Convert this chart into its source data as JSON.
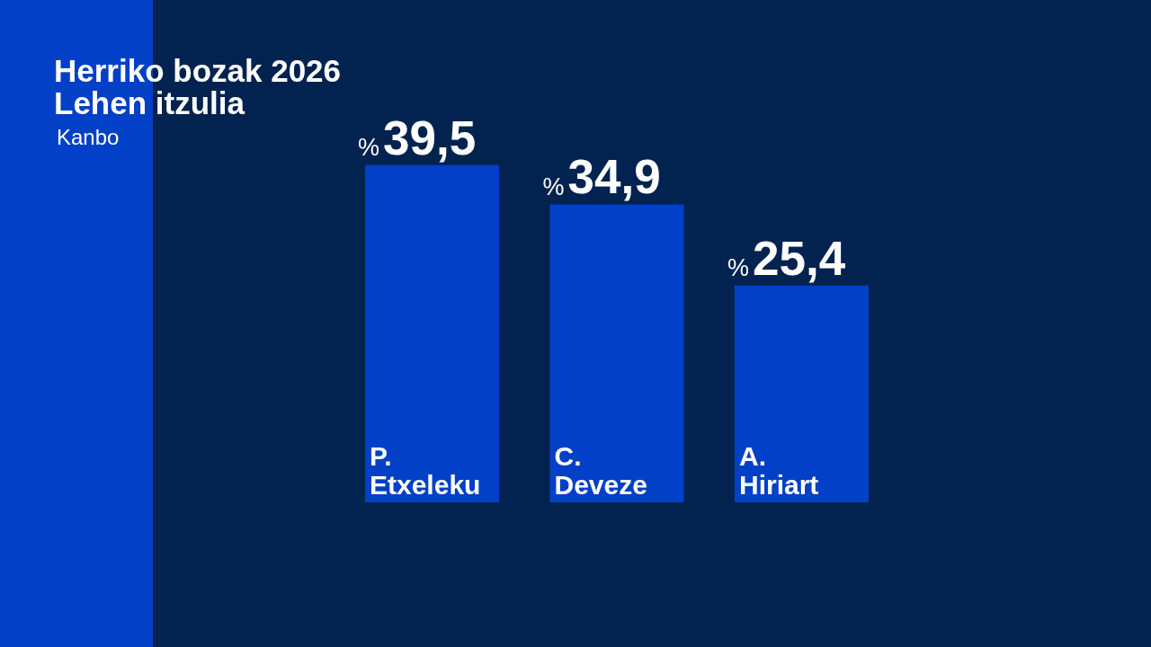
{
  "chart_data": {
    "type": "bar",
    "title": "Herriko bozak 2026",
    "subtitle": "Lehen itzulia",
    "annotations": [
      "Kanbo"
    ],
    "categories": [
      "P. Etxeleku",
      "C. Deveze",
      "A. Hiriart"
    ],
    "values": [
      39.5,
      34.9,
      25.4
    ],
    "color": "#0340c8",
    "value_labels": [
      "%39,5",
      "%34,9",
      "%25,4"
    ]
  }
}
